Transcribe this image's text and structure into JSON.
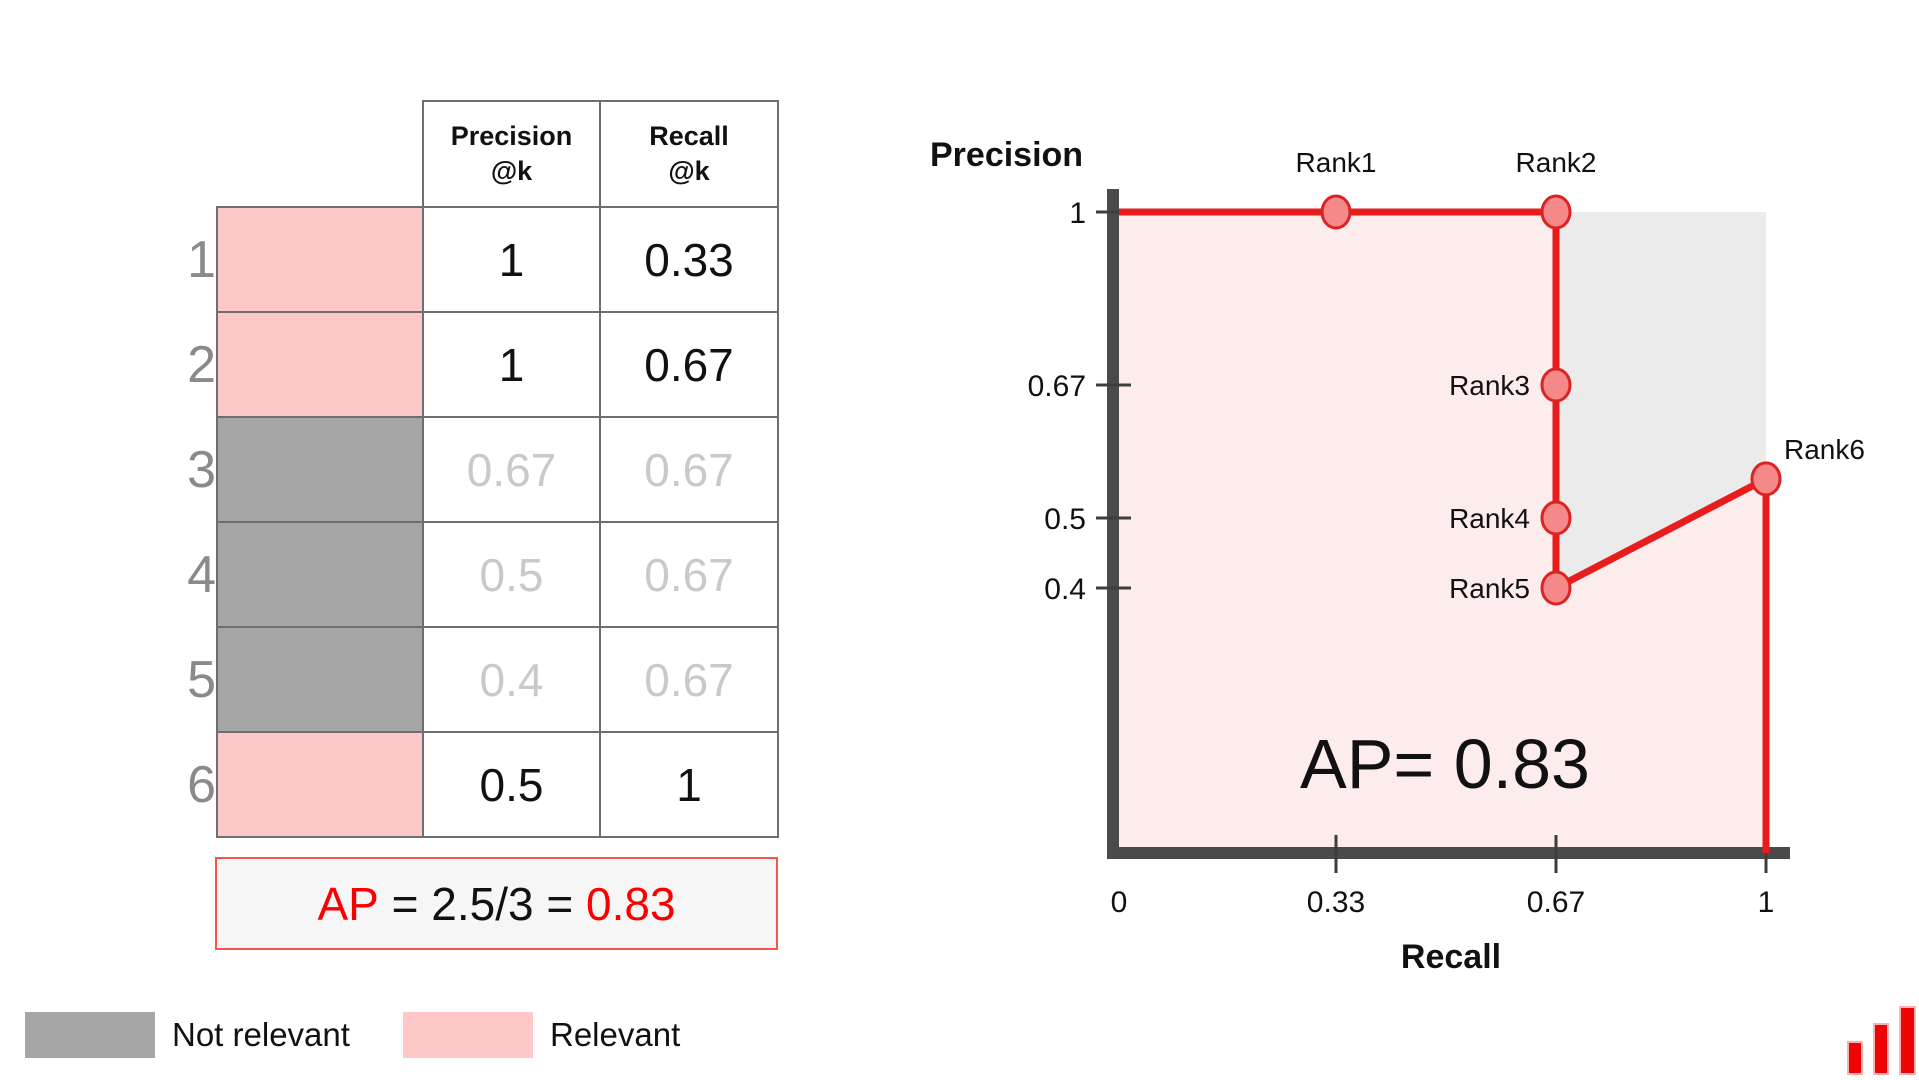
{
  "table": {
    "headers": [
      {
        "line1": "Precision",
        "line2": "@k"
      },
      {
        "line1": "Recall",
        "line2": "@k"
      }
    ],
    "rows": [
      {
        "rank": "1",
        "relevant": true,
        "dimmed": false,
        "precision": "1",
        "recall": "0.33"
      },
      {
        "rank": "2",
        "relevant": true,
        "dimmed": false,
        "precision": "1",
        "recall": "0.67"
      },
      {
        "rank": "3",
        "relevant": false,
        "dimmed": true,
        "precision": "0.67",
        "recall": "0.67"
      },
      {
        "rank": "4",
        "relevant": false,
        "dimmed": true,
        "precision": "0.5",
        "recall": "0.67"
      },
      {
        "rank": "5",
        "relevant": false,
        "dimmed": true,
        "precision": "0.4",
        "recall": "0.67"
      },
      {
        "rank": "6",
        "relevant": true,
        "dimmed": false,
        "precision": "0.5",
        "recall": "1"
      }
    ]
  },
  "ap_summary": {
    "prefix": "AP",
    "middle": " = 2.5/3 = ",
    "value": "0.83"
  },
  "legend": [
    {
      "label": "Not relevant",
      "color": "#a6a6a6"
    },
    {
      "label": "Relevant",
      "color": "#ffc8c8"
    }
  ],
  "chart_data": {
    "type": "line",
    "xlabel": "Recall",
    "ylabel": "Precision",
    "annotation": "AP= 0.83",
    "xlim": [
      0,
      1
    ],
    "ylim": [
      0,
      1
    ],
    "x_ticks": [
      {
        "value": 0,
        "label": "0"
      },
      {
        "value": 0.33,
        "label": "0.33"
      },
      {
        "value": 0.67,
        "label": "0.67"
      },
      {
        "value": 1,
        "label": "1"
      }
    ],
    "y_ticks": [
      {
        "value": 1,
        "label": "1"
      },
      {
        "value": 0.67,
        "label": "0.67"
      },
      {
        "value": 0.5,
        "label": "0.5"
      },
      {
        "value": 0.4,
        "label": "0.4"
      }
    ],
    "points": [
      {
        "label": "Rank1",
        "recall": 0.33,
        "precision": 1,
        "label_pos": "above"
      },
      {
        "label": "Rank2",
        "recall": 0.67,
        "precision": 1,
        "label_pos": "above"
      },
      {
        "label": "Rank3",
        "recall": 0.67,
        "precision": 0.67,
        "label_pos": "left"
      },
      {
        "label": "Rank4",
        "recall": 0.67,
        "precision": 0.5,
        "label_pos": "left"
      },
      {
        "label": "Rank5",
        "recall": 0.67,
        "precision": 0.4,
        "label_pos": "left"
      },
      {
        "label": "Rank6",
        "recall": 1,
        "precision": 0.5,
        "y_draw": 0.55,
        "label_pos": "above-right"
      }
    ],
    "curve": [
      [
        0,
        1
      ],
      [
        0.67,
        1
      ],
      [
        0.67,
        0.4
      ],
      [
        1,
        0.55
      ],
      [
        1,
        0
      ]
    ],
    "gap_area": [
      [
        0.67,
        1
      ],
      [
        1,
        1
      ],
      [
        1,
        0.55
      ],
      [
        0.67,
        0.4
      ]
    ],
    "colors": {
      "line": "#e81c1c",
      "marker_fill": "#f58888",
      "marker_stroke": "#dd2222",
      "area_under": "#fdecec",
      "area_gap": "#ebebeb",
      "axis": "#4a4a4a"
    }
  },
  "logo": {
    "name": "bar-chart-logo"
  }
}
